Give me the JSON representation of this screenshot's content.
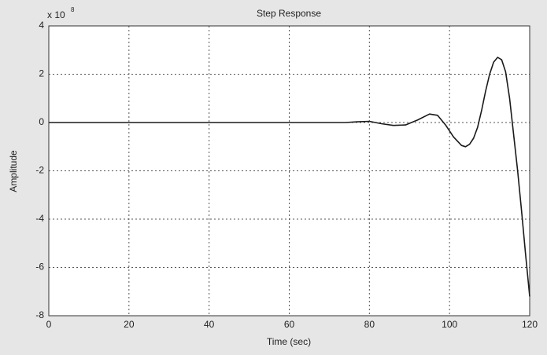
{
  "chart_data": {
    "type": "line",
    "title": "Step Response",
    "xlabel": "Time (sec)",
    "ylabel": "Amplitude",
    "y_exponent_base": "x 10",
    "y_exponent": "8",
    "x": [
      0,
      20,
      40,
      60,
      74,
      77,
      80,
      83,
      86,
      89,
      92,
      95,
      97,
      99,
      101,
      103,
      104,
      105,
      106,
      107,
      108,
      109,
      110,
      111,
      112,
      113,
      114,
      115,
      116,
      117,
      118,
      119,
      120
    ],
    "values": [
      0,
      0,
      0,
      0,
      0,
      0.03,
      0.05,
      -0.05,
      -0.12,
      -0.1,
      0.1,
      0.35,
      0.3,
      -0.1,
      -0.6,
      -0.95,
      -1.0,
      -0.9,
      -0.65,
      -0.2,
      0.5,
      1.3,
      2.0,
      2.5,
      2.7,
      2.6,
      2.1,
      1.0,
      -0.5,
      -2.0,
      -3.7,
      -5.5,
      -7.2
    ],
    "color": "#1a1a1a",
    "xlim": [
      0,
      120
    ],
    "xticks": [
      0,
      20,
      40,
      60,
      80,
      100,
      120
    ],
    "ylim": [
      -8,
      4
    ],
    "yticks": [
      -8,
      -6,
      -4,
      -2,
      0,
      2,
      4
    ],
    "grid": true
  }
}
